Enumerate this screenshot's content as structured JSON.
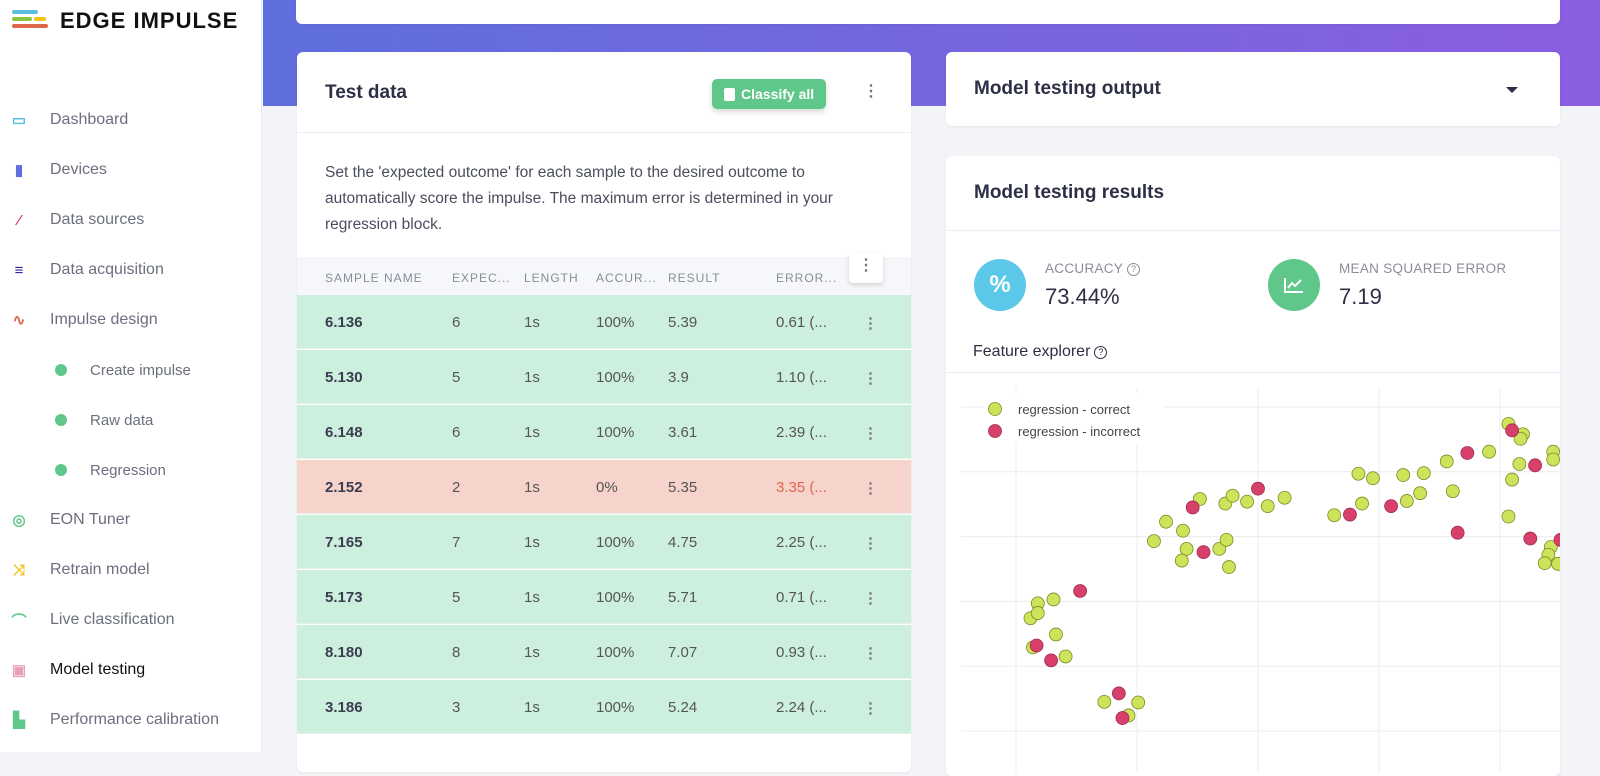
{
  "brand": {
    "name": "EDGE IMPULSE"
  },
  "sidebar": {
    "items": [
      {
        "label": "Dashboard",
        "icon": "monitor-icon",
        "color": "#5bc0de"
      },
      {
        "label": "Devices",
        "icon": "chip-icon",
        "color": "#5f6fdd"
      },
      {
        "label": "Data sources",
        "icon": "magic-wand-icon",
        "color": "#d9466f"
      },
      {
        "label": "Data acquisition",
        "icon": "database-icon",
        "color": "#3b1f9e"
      },
      {
        "label": "Impulse design",
        "icon": "pulse-icon",
        "color": "#e0664a"
      },
      {
        "label": "Create impulse",
        "icon": "dot-icon",
        "sub": true
      },
      {
        "label": "Raw data",
        "icon": "dot-icon",
        "sub": true
      },
      {
        "label": "Regression",
        "icon": "dot-icon",
        "sub": true
      },
      {
        "label": "EON Tuner",
        "icon": "compass-icon",
        "color": "#5fc78a"
      },
      {
        "label": "Retrain model",
        "icon": "shuffle-icon",
        "color": "#f0c419"
      },
      {
        "label": "Live classification",
        "icon": "bezier-icon",
        "color": "#5fc78a"
      },
      {
        "label": "Model testing",
        "icon": "clipboard-check-icon",
        "color": "#e8a0b4",
        "active": true
      },
      {
        "label": "Performance calibration",
        "icon": "factory-icon",
        "color": "#5fc78a"
      }
    ]
  },
  "test_data": {
    "title": "Test data",
    "classify_all": "Classify all",
    "description": "Set the 'expected outcome' for each sample to the desired outcome to automatically score the impulse. The maximum error is determined in your regression block.",
    "columns": [
      "SAMPLE NAME",
      "EXPEC...",
      "LENGTH",
      "ACCUR...",
      "RESULT",
      "ERROR..."
    ],
    "rows": [
      {
        "name": "6.136",
        "expected": "6",
        "length": "1s",
        "accuracy": "100%",
        "result": "5.39",
        "error": "0.61 (...",
        "correct": true
      },
      {
        "name": "5.130",
        "expected": "5",
        "length": "1s",
        "accuracy": "100%",
        "result": "3.9",
        "error": "1.10 (...",
        "correct": true
      },
      {
        "name": "6.148",
        "expected": "6",
        "length": "1s",
        "accuracy": "100%",
        "result": "3.61",
        "error": "2.39 (...",
        "correct": true
      },
      {
        "name": "2.152",
        "expected": "2",
        "length": "1s",
        "accuracy": "0%",
        "result": "5.35",
        "error": "3.35 (...",
        "correct": false
      },
      {
        "name": "7.165",
        "expected": "7",
        "length": "1s",
        "accuracy": "100%",
        "result": "4.75",
        "error": "2.25 (...",
        "correct": true
      },
      {
        "name": "5.173",
        "expected": "5",
        "length": "1s",
        "accuracy": "100%",
        "result": "5.71",
        "error": "0.71 (...",
        "correct": true
      },
      {
        "name": "8.180",
        "expected": "8",
        "length": "1s",
        "accuracy": "100%",
        "result": "7.07",
        "error": "0.93 (...",
        "correct": true
      },
      {
        "name": "3.186",
        "expected": "3",
        "length": "1s",
        "accuracy": "100%",
        "result": "5.24",
        "error": "2.24 (...",
        "correct": true
      }
    ]
  },
  "output": {
    "title": "Model testing output"
  },
  "results": {
    "title": "Model testing results",
    "accuracy_label": "ACCURACY",
    "accuracy_value": "73.44%",
    "mse_label": "MEAN SQUARED ERROR",
    "mse_value": "7.19",
    "feature_explorer": "Feature explorer"
  },
  "colors": {
    "correct_row": "#cdf0de",
    "incorrect_row": "#f6d3cb",
    "error_text": "#e0664a",
    "correct_point": "#cde35a",
    "incorrect_point": "#d6406a"
  },
  "chart_data": {
    "type": "scatter",
    "title": "",
    "xlabel": "",
    "ylabel": "",
    "xlim": [
      -0.3,
      4.5
    ],
    "ylim": [
      -0.1,
      5.5
    ],
    "grid": true,
    "legend_position": "top-left",
    "series": [
      {
        "name": "regression - correct",
        "color": "#cde35a",
        "points": [
          [
            0.12,
            1.74
          ],
          [
            0.18,
            1.97
          ],
          [
            0.18,
            1.82
          ],
          [
            0.31,
            2.03
          ],
          [
            0.33,
            1.49
          ],
          [
            0.14,
            1.29
          ],
          [
            0.41,
            1.15
          ],
          [
            0.73,
            0.45
          ],
          [
            0.93,
            0.24
          ],
          [
            1.01,
            0.44
          ],
          [
            1.14,
            2.93
          ],
          [
            1.24,
            3.23
          ],
          [
            1.38,
            3.09
          ],
          [
            1.41,
            2.81
          ],
          [
            1.37,
            2.63
          ],
          [
            1.52,
            3.58
          ],
          [
            1.68,
            2.81
          ],
          [
            1.74,
            2.95
          ],
          [
            1.76,
            2.53
          ],
          [
            1.73,
            3.51
          ],
          [
            1.79,
            3.63
          ],
          [
            1.91,
            3.54
          ],
          [
            2.08,
            3.47
          ],
          [
            2.22,
            3.6
          ],
          [
            2.63,
            3.33
          ],
          [
            2.83,
            3.97
          ],
          [
            2.95,
            3.9
          ],
          [
            2.86,
            3.51
          ],
          [
            3.2,
            3.95
          ],
          [
            3.37,
            3.98
          ],
          [
            3.23,
            3.55
          ],
          [
            3.34,
            3.67
          ],
          [
            3.56,
            4.16
          ],
          [
            3.61,
            3.7
          ],
          [
            3.91,
            4.31
          ],
          [
            4.07,
            4.74
          ],
          [
            4.19,
            4.58
          ],
          [
            4.17,
            4.51
          ],
          [
            4.16,
            4.12
          ],
          [
            4.1,
            3.88
          ],
          [
            4.07,
            3.31
          ],
          [
            4.44,
            4.31
          ],
          [
            4.44,
            4.19
          ],
          [
            4.42,
            2.84
          ],
          [
            4.4,
            2.72
          ],
          [
            4.37,
            2.59
          ],
          [
            4.48,
            2.58
          ]
        ]
      },
      {
        "name": "regression - incorrect",
        "color": "#d6406a",
        "points": [
          [
            0.53,
            2.16
          ],
          [
            0.17,
            1.32
          ],
          [
            0.29,
            1.09
          ],
          [
            0.85,
            0.58
          ],
          [
            0.88,
            0.2
          ],
          [
            1.46,
            3.45
          ],
          [
            1.55,
            2.76
          ],
          [
            2.0,
            3.74
          ],
          [
            2.76,
            3.34
          ],
          [
            3.1,
            3.47
          ],
          [
            3.73,
            4.29
          ],
          [
            3.65,
            3.06
          ],
          [
            4.1,
            4.64
          ],
          [
            4.29,
            4.1
          ],
          [
            4.25,
            2.97
          ],
          [
            4.5,
            2.95
          ]
        ]
      }
    ]
  }
}
